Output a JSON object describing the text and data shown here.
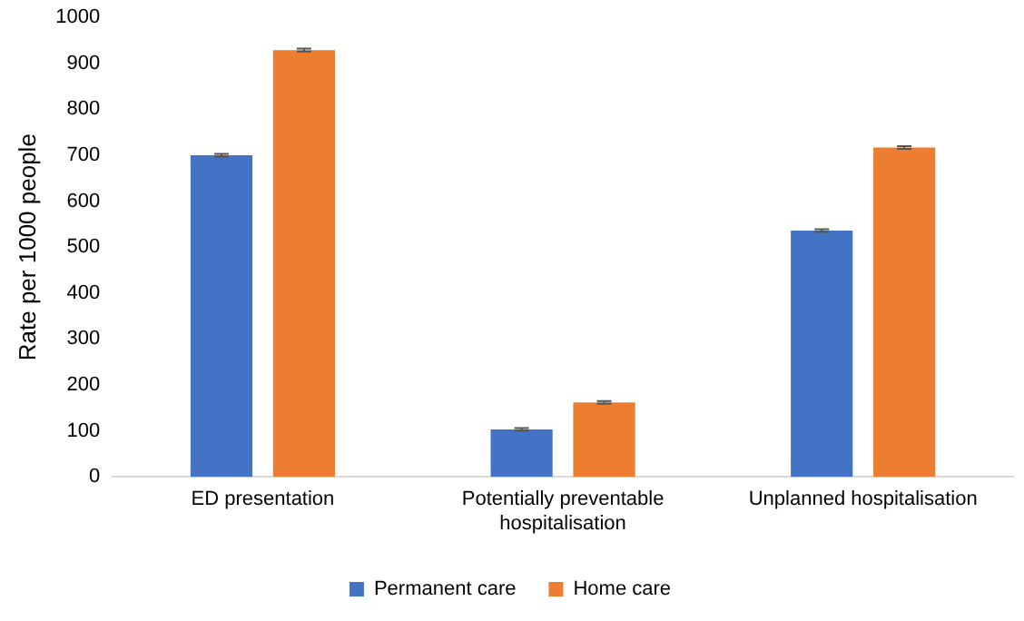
{
  "chart_data": {
    "type": "bar",
    "ylabel": "Rate per 1000 people",
    "categories": [
      "ED presentation",
      "Potentially preventable hospitalisation",
      "Unplanned hospitalisation"
    ],
    "series": [
      {
        "name": "Permanent care",
        "color": "#4472c4",
        "values": [
          700,
          103,
          536
        ],
        "errors": [
          3,
          3,
          3
        ]
      },
      {
        "name": "Home care",
        "color": "#ed7d31",
        "values": [
          929,
          162,
          717
        ],
        "errors": [
          3,
          3,
          3
        ]
      }
    ],
    "ylim": [
      0,
      1000
    ],
    "yticks": [
      0,
      100,
      200,
      300,
      400,
      500,
      600,
      700,
      800,
      900,
      1000
    ],
    "grid": false,
    "legend": "bottom"
  }
}
